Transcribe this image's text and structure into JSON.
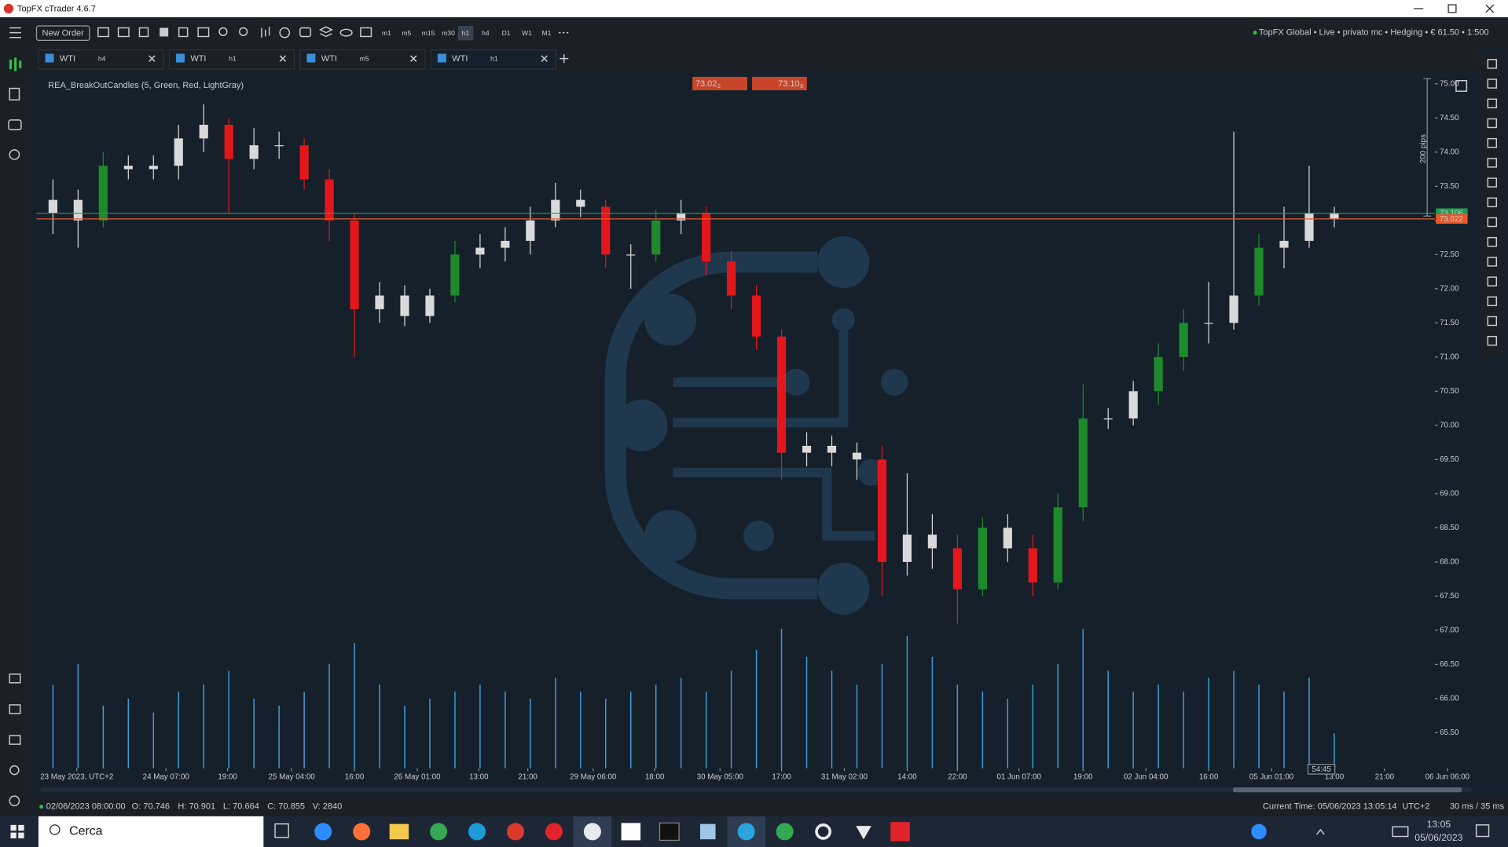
{
  "window": {
    "title": "TopFX cTrader 4.6.7"
  },
  "toolbar": {
    "new_order": "New Order",
    "timeframes": [
      "m1",
      "m5",
      "m15",
      "m30",
      "h1",
      "h4",
      "D1",
      "W1",
      "M1"
    ],
    "account": "TopFX Global • Live • privato mc • Hedging • € 61.50 • 1:500"
  },
  "tabs": [
    {
      "symbol": "WTI",
      "timeframe": "h4"
    },
    {
      "symbol": "WTI",
      "timeframe": "h1"
    },
    {
      "symbol": "WTI",
      "timeframe": "m5"
    },
    {
      "symbol": "WTI",
      "timeframe": "h1"
    }
  ],
  "chart_data": {
    "type": "candlestick",
    "indicator": "REA_BreakOutCandles (5, Green, Red, LightGray)",
    "bid_button": {
      "main": "73.02",
      "pip": "2"
    },
    "ask_button": {
      "main": "73.10",
      "pip": "6"
    },
    "pips_label": "200 pips",
    "crosshair_label": "54:45",
    "ask": 73.106,
    "ask_color": "#1e9c50",
    "bid": 73.022,
    "bid_color": "#e8572a",
    "up_color": "#1e8a2c",
    "down_color": "#e3171b",
    "neutral_color": "#d9d9d9",
    "volume_color": "#3f9fd8",
    "xlim": [
      0,
      113
    ],
    "xticks": [
      {
        "value": 2.9,
        "label": "23 May 2023, UTC+2"
      },
      {
        "value": 10,
        "label": "24 May 07:00"
      },
      {
        "value": 14.9,
        "label": "19:00"
      },
      {
        "value": 20,
        "label": "25 May 04:00"
      },
      {
        "value": 25,
        "label": "16:00"
      },
      {
        "value": 30,
        "label": "26 May 01:00"
      },
      {
        "value": 34.9,
        "label": "13:00"
      },
      {
        "value": 38.8,
        "label": "21:00"
      },
      {
        "value": 44,
        "label": "29 May 06:00"
      },
      {
        "value": 48.9,
        "label": "18:00"
      },
      {
        "value": 54.1,
        "label": "30 May 05:00"
      },
      {
        "value": 59,
        "label": "17:00"
      },
      {
        "value": 64,
        "label": "31 May 02:00"
      },
      {
        "value": 69,
        "label": "14:00"
      },
      {
        "value": 73,
        "label": "22:00"
      },
      {
        "value": 77.9,
        "label": "01 Jun 07:00"
      },
      {
        "value": 83,
        "label": "19:00"
      },
      {
        "value": 88,
        "label": "02 Jun 04:00"
      },
      {
        "value": 93,
        "label": "16:00"
      },
      {
        "value": 98,
        "label": "05 Jun 01:00"
      },
      {
        "value": 103,
        "label": "13:00"
      },
      {
        "value": 107,
        "label": "21:00"
      },
      {
        "value": 112,
        "label": "06 Jun 06:00"
      }
    ],
    "ylim": [
      64.98,
      75.13
    ],
    "yticks": [
      {
        "value": 65.5,
        "label": "65.50"
      },
      {
        "value": 66,
        "label": "66.00"
      },
      {
        "value": 66.5,
        "label": "66.50"
      },
      {
        "value": 67,
        "label": "67.00"
      },
      {
        "value": 67.5,
        "label": "67.50"
      },
      {
        "value": 68,
        "label": "68.00"
      },
      {
        "value": 68.5,
        "label": "68.50"
      },
      {
        "value": 69,
        "label": "69.00"
      },
      {
        "value": 69.5,
        "label": "69.50"
      },
      {
        "value": 70,
        "label": "70.00"
      },
      {
        "value": 70.5,
        "label": "70.50"
      },
      {
        "value": 71,
        "label": "71.00"
      },
      {
        "value": 71.5,
        "label": "71.50"
      },
      {
        "value": 72,
        "label": "72.00"
      },
      {
        "value": 72.5,
        "label": "72.50"
      },
      {
        "value": 73,
        "label": "73.00"
      },
      {
        "value": 73.5,
        "label": "73.50"
      },
      {
        "value": 74,
        "label": "74.00"
      },
      {
        "value": 74.5,
        "label": "74.50"
      },
      {
        "value": 75,
        "label": "75.00"
      }
    ],
    "x": [
      1,
      3,
      5,
      7,
      9,
      11,
      13,
      15,
      17,
      19,
      21,
      23,
      25,
      27,
      29,
      31,
      33,
      35,
      37,
      39,
      41,
      43,
      45,
      47,
      49,
      51,
      53,
      55,
      57,
      59,
      61,
      63,
      65,
      67,
      69,
      71,
      73,
      75,
      77,
      79,
      81,
      83,
      85,
      87,
      89,
      91,
      93,
      95,
      97,
      99,
      101,
      103
    ],
    "open": [
      73.1,
      73.3,
      73.0,
      73.8,
      73.75,
      73.8,
      74.2,
      74.4,
      73.9,
      74.1,
      74.1,
      73.6,
      73.0,
      71.7,
      71.9,
      71.6,
      71.9,
      72.5,
      72.6,
      72.7,
      73.0,
      73.3,
      73.2,
      72.5,
      72.5,
      73.0,
      73.1,
      72.4,
      71.9,
      71.3,
      69.6,
      69.7,
      69.6,
      69.5,
      68.0,
      68.4,
      68.2,
      67.6,
      68.5,
      68.2,
      67.7,
      68.8,
      70.1,
      70.1,
      70.5,
      71.0,
      71.5,
      71.5,
      71.9,
      72.6,
      72.7,
      73.1
    ],
    "high": [
      73.6,
      73.45,
      74.0,
      73.95,
      73.95,
      74.4,
      74.7,
      74.5,
      74.35,
      74.3,
      74.2,
      73.75,
      73.1,
      72.1,
      72.05,
      72.0,
      72.7,
      72.8,
      72.9,
      73.2,
      73.55,
      73.45,
      73.3,
      72.65,
      73.15,
      73.3,
      73.2,
      72.55,
      72.05,
      71.4,
      69.9,
      69.85,
      69.75,
      69.7,
      69.3,
      68.7,
      68.4,
      68.65,
      68.7,
      68.4,
      69.0,
      70.6,
      70.25,
      70.65,
      71.2,
      71.7,
      72.1,
      74.3,
      72.8,
      73.2,
      73.8,
      73.2
    ],
    "low": [
      72.8,
      72.6,
      72.9,
      73.6,
      73.6,
      73.6,
      74.0,
      73.1,
      73.75,
      73.9,
      73.45,
      72.7,
      71.0,
      71.5,
      71.45,
      71.5,
      71.8,
      72.3,
      72.4,
      72.5,
      72.9,
      73.05,
      72.3,
      72.0,
      72.4,
      72.8,
      72.2,
      71.7,
      71.1,
      69.2,
      69.4,
      69.4,
      69.2,
      67.5,
      67.8,
      67.9,
      67.1,
      67.5,
      68.0,
      67.5,
      67.6,
      68.6,
      69.95,
      70.0,
      70.3,
      70.8,
      71.2,
      71.4,
      71.75,
      72.3,
      72.6,
      72.9
    ],
    "close": [
      73.3,
      73.0,
      73.8,
      73.75,
      73.8,
      74.2,
      74.4,
      73.9,
      74.1,
      74.1,
      73.6,
      73.0,
      71.7,
      71.9,
      71.6,
      71.9,
      72.5,
      72.6,
      72.7,
      73.0,
      73.3,
      73.2,
      72.5,
      72.5,
      73.0,
      73.1,
      72.4,
      71.9,
      71.3,
      69.6,
      69.7,
      69.6,
      69.5,
      68.0,
      68.4,
      68.2,
      67.6,
      68.5,
      68.2,
      67.7,
      68.8,
      70.1,
      70.1,
      70.5,
      71.0,
      71.5,
      71.5,
      71.9,
      72.6,
      72.7,
      73.1,
      73.02
    ],
    "volume": [
      60,
      75,
      45,
      50,
      40,
      55,
      60,
      70,
      50,
      45,
      55,
      75,
      90,
      60,
      45,
      50,
      55,
      60,
      55,
      50,
      65,
      55,
      50,
      55,
      60,
      65,
      55,
      70,
      85,
      100,
      80,
      70,
      60,
      75,
      95,
      80,
      60,
      55,
      50,
      60,
      75,
      100,
      70,
      55,
      60,
      55,
      65,
      70,
      60,
      55,
      65,
      25
    ]
  },
  "status": {
    "time": "02/06/2023 08:00:00",
    "open": "O: 70.746",
    "high": "H: 70.901",
    "low": "L: 70.664",
    "close": "C: 70.855",
    "volume": "V: 2840",
    "current_time": "Current Time: 05/06/2023 13:05:14",
    "timezone": "UTC+2",
    "latency": "30 ms / 35 ms"
  },
  "taskbar": {
    "search": "Cerca",
    "clock_time": "13:05",
    "clock_date": "05/06/2023"
  }
}
